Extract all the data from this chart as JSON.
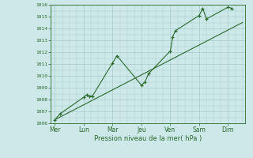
{
  "bg_color": "#cce8e8",
  "grid_color": "#aacccc",
  "line_color": "#2d6a2d",
  "marker_color": "#2d6a2d",
  "ylim": [
    1006,
    1016
  ],
  "yticks": [
    1006,
    1007,
    1008,
    1009,
    1010,
    1011,
    1012,
    1013,
    1014,
    1015,
    1016
  ],
  "xlabel": "Pression niveau de la mer( hPa )",
  "day_labels": [
    "Mer",
    "Lun",
    "Mar",
    "Jeu",
    "Ven",
    "Sam",
    "Dim"
  ],
  "day_positions": [
    0,
    1,
    2,
    3,
    4,
    5,
    6
  ],
  "actual_x": [
    0.0,
    0.18,
    1.0,
    1.1,
    1.2,
    1.3,
    2.0,
    2.15,
    3.0,
    3.12,
    3.25,
    4.0,
    4.08,
    4.17,
    5.0,
    5.12,
    5.25,
    6.0,
    6.12
  ],
  "actual_y": [
    1006.3,
    1006.8,
    1008.2,
    1008.4,
    1008.3,
    1008.3,
    1011.1,
    1011.7,
    1009.2,
    1009.5,
    1010.2,
    1012.1,
    1013.3,
    1013.8,
    1015.1,
    1015.7,
    1014.8,
    1015.8,
    1015.7
  ],
  "trend_x": [
    0.0,
    6.5
  ],
  "trend_y": [
    1006.3,
    1014.5
  ],
  "xlim": [
    -0.15,
    6.6
  ]
}
